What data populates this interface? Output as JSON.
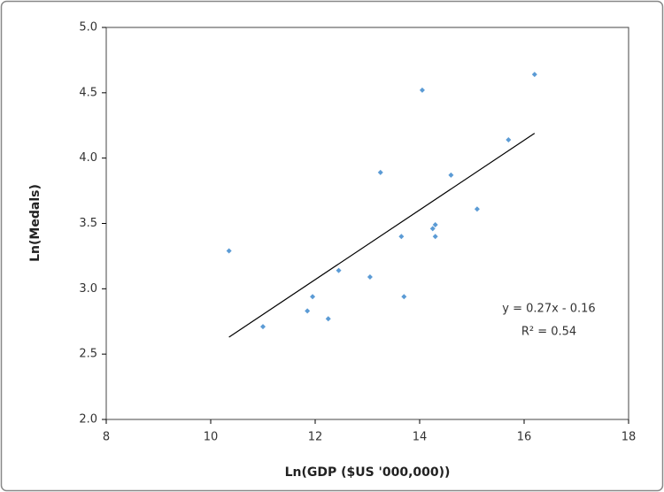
{
  "chart_data": {
    "type": "scatter",
    "xlabel": "Ln(GDP ($US '000,000))",
    "ylabel": "Ln(Medals)",
    "annotations": [
      "y = 0.27x - 0.16",
      "R² = 0.54"
    ],
    "xlim": [
      8,
      18
    ],
    "xticks": [
      8,
      10,
      12,
      14,
      16,
      18
    ],
    "ylim": [
      2,
      5
    ],
    "yticks": [
      {
        "value": 2,
        "label": "2.0"
      },
      2.5,
      {
        "value": 3,
        "label": "3.0"
      },
      3.5,
      {
        "value": 4,
        "label": "4.0"
      },
      4.5,
      {
        "value": 5,
        "label": "5.0"
      }
    ],
    "grid": false,
    "series": [
      {
        "color": "#5b9bd5",
        "x": [
          10.35,
          11.0,
          11.85,
          11.95,
          12.25,
          12.45,
          13.05,
          13.25,
          13.65,
          13.7,
          14.05,
          14.25,
          14.3,
          14.3,
          14.6,
          15.1,
          15.7,
          16.2
        ],
        "values": [
          3.29,
          2.71,
          2.83,
          2.94,
          2.77,
          3.14,
          3.09,
          3.89,
          3.4,
          2.94,
          4.52,
          3.46,
          3.49,
          3.4,
          3.87,
          3.61,
          4.14,
          4.64
        ]
      }
    ],
    "trendline": {
      "color": "#000000",
      "x": [
        10.35,
        16.2
      ],
      "values": [
        2.63,
        4.19
      ]
    }
  }
}
